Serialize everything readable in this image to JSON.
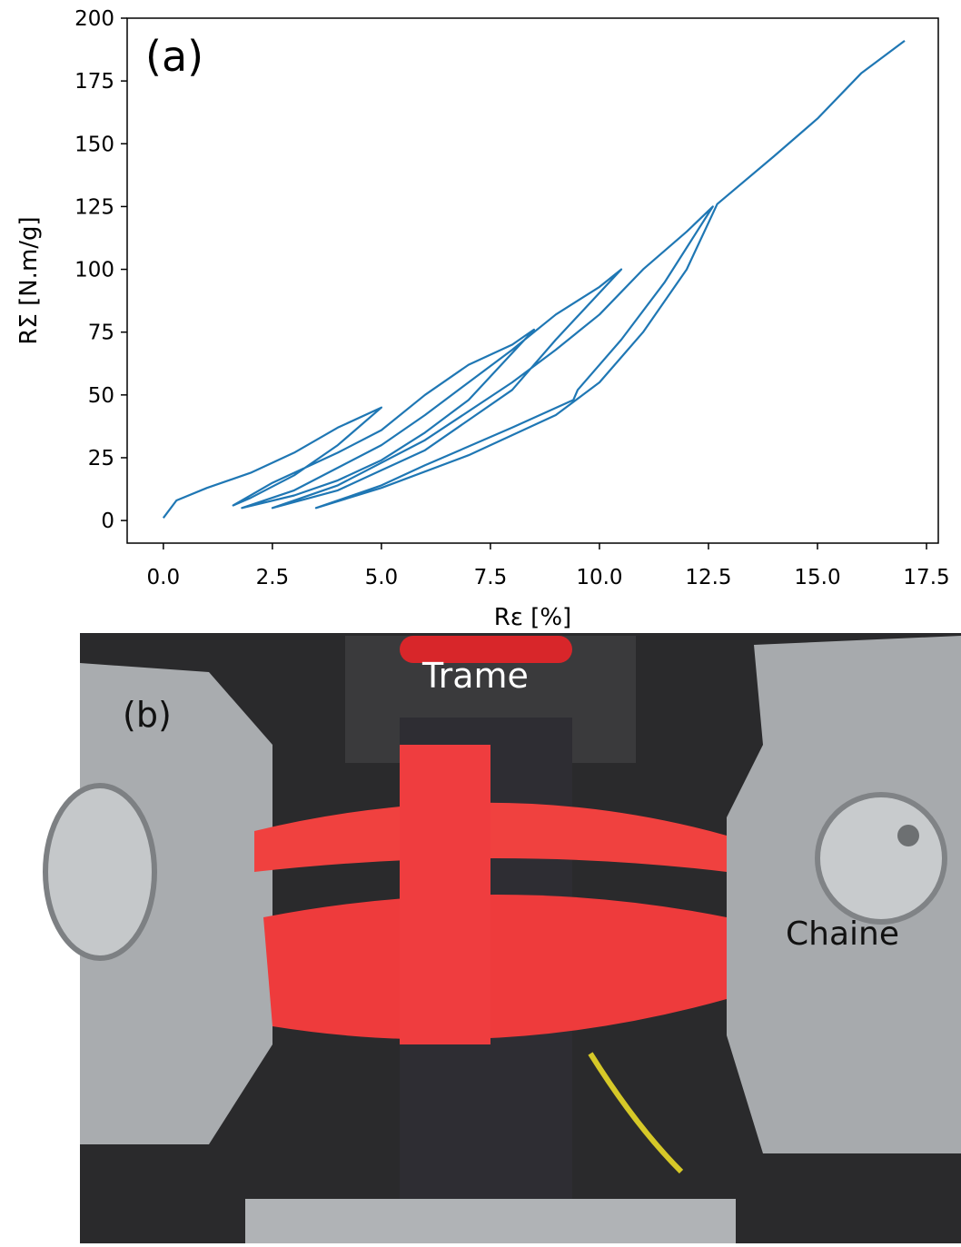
{
  "chart_data": {
    "type": "line",
    "annotation": "(a)",
    "xlabel": "Rε [%]",
    "ylabel": "RΣ [N.m/g]",
    "xlim": [
      -0.83,
      17.77
    ],
    "ylim": [
      -9,
      200
    ],
    "xticks": [
      {
        "value": 0,
        "label": "0.0"
      },
      2.5,
      {
        "value": 5,
        "label": "5.0"
      },
      7.5,
      {
        "value": 10,
        "label": "10.0"
      },
      12.5,
      {
        "value": 15,
        "label": "15.0"
      },
      17.5
    ],
    "yticks": [
      0,
      25,
      50,
      75,
      100,
      125,
      150,
      175,
      200
    ],
    "series": [
      {
        "color": "#1f77b4",
        "x": [
          0,
          0.3,
          1,
          2,
          3,
          4,
          5,
          4,
          3,
          2,
          1.6,
          2.5,
          4,
          5,
          6,
          7,
          8,
          8.5,
          7,
          6,
          5,
          4,
          3,
          1.8,
          3,
          5,
          6,
          7,
          8,
          9,
          10,
          10.5,
          9,
          8,
          7,
          6,
          5,
          4,
          2.5,
          4,
          6,
          8,
          9,
          10,
          11,
          12,
          12.6,
          11.5,
          10.5,
          9.5,
          9.4,
          8,
          6,
          5,
          3.5,
          5,
          7,
          9,
          10,
          11,
          12,
          12.7,
          14,
          15,
          16,
          17
        ],
        "values": [
          1,
          8,
          13,
          19,
          27,
          37,
          45,
          30,
          18,
          9,
          6,
          15,
          27,
          36,
          50,
          62,
          70,
          76,
          48,
          35,
          24,
          16,
          10,
          5,
          12,
          30,
          42,
          55,
          68,
          82,
          93,
          100,
          72,
          52,
          40,
          28,
          20,
          12,
          5,
          14,
          32,
          55,
          68,
          82,
          100,
          115,
          125,
          95,
          72,
          52,
          48,
          37,
          22,
          14,
          5,
          13,
          26,
          42,
          55,
          75,
          100,
          126,
          145,
          160,
          178,
          191
        ]
      }
    ]
  },
  "photo": {
    "label": "(b)",
    "annotations": [
      "Trame",
      "Chaine"
    ]
  }
}
